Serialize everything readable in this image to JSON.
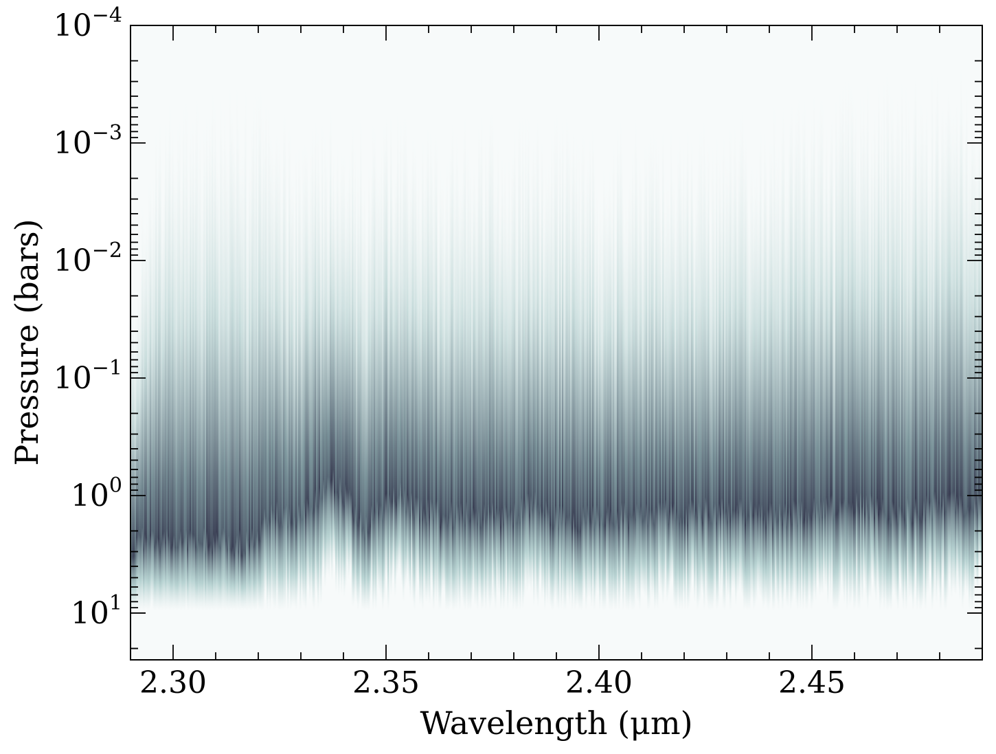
{
  "chart_data": {
    "type": "heatmap",
    "title": "",
    "xlabel": "Wavelength (μm)",
    "ylabel": "Pressure (bars)",
    "xlim": [
      2.29,
      2.49
    ],
    "ylim": [
      25,
      0.0001
    ],
    "yscale": "log",
    "y_inverted": true,
    "grid": false,
    "legend": "none",
    "x_ticks": [
      {
        "value": 2.3,
        "label": "2.30"
      },
      {
        "value": 2.35,
        "label": "2.35"
      },
      {
        "value": 2.4,
        "label": "2.40"
      },
      {
        "value": 2.45,
        "label": "2.45"
      }
    ],
    "y_ticks": [
      {
        "value": 0.0001,
        "base": "10",
        "exp": "−4"
      },
      {
        "value": 0.001,
        "base": "10",
        "exp": "−3"
      },
      {
        "value": 0.01,
        "base": "10",
        "exp": "−2"
      },
      {
        "value": 0.1,
        "base": "10",
        "exp": "−1"
      },
      {
        "value": 1,
        "base": "10",
        "exp": "0"
      },
      {
        "value": 10,
        "base": "10",
        "exp": "1"
      }
    ],
    "colormap": {
      "low": "#f7fafa",
      "mid": "#8fb9b8",
      "high": "#1e1a35"
    },
    "contribution_profile": [
      {
        "x": 2.2905,
        "peak_pressure": 3.0,
        "top_pressure": 0.02
      },
      {
        "x": 2.293,
        "peak_pressure": 2.2,
        "top_pressure": 0.002
      },
      {
        "x": 2.3,
        "peak_pressure": 2.5,
        "top_pressure": 0.0006
      },
      {
        "x": 2.31,
        "peak_pressure": 2.4,
        "top_pressure": 0.0005
      },
      {
        "x": 2.32,
        "peak_pressure": 2.5,
        "top_pressure": 0.0005
      },
      {
        "x": 2.3225,
        "peak_pressure": 1.3,
        "top_pressure": 0.0007
      },
      {
        "x": 2.33,
        "peak_pressure": 1.6,
        "top_pressure": 0.0008
      },
      {
        "x": 2.336,
        "peak_pressure": 0.8,
        "top_pressure": 0.0008
      },
      {
        "x": 2.338,
        "peak_pressure": 0.7,
        "top_pressure": 0.0008
      },
      {
        "x": 2.345,
        "peak_pressure": 1.8,
        "top_pressure": 0.0009
      },
      {
        "x": 2.353,
        "peak_pressure": 1.0,
        "top_pressure": 0.0009
      },
      {
        "x": 2.36,
        "peak_pressure": 1.4,
        "top_pressure": 0.0009
      },
      {
        "x": 2.37,
        "peak_pressure": 1.5,
        "top_pressure": 0.0009
      },
      {
        "x": 2.38,
        "peak_pressure": 1.4,
        "top_pressure": 0.0009
      },
      {
        "x": 2.385,
        "peak_pressure": 1.1,
        "top_pressure": 0.0009
      },
      {
        "x": 2.39,
        "peak_pressure": 1.6,
        "top_pressure": 0.0009
      },
      {
        "x": 2.4,
        "peak_pressure": 1.5,
        "top_pressure": 0.001
      },
      {
        "x": 2.41,
        "peak_pressure": 1.4,
        "top_pressure": 0.001
      },
      {
        "x": 2.42,
        "peak_pressure": 1.4,
        "top_pressure": 0.001
      },
      {
        "x": 2.43,
        "peak_pressure": 1.3,
        "top_pressure": 0.001
      },
      {
        "x": 2.44,
        "peak_pressure": 1.5,
        "top_pressure": 0.0008
      },
      {
        "x": 2.45,
        "peak_pressure": 1.3,
        "top_pressure": 0.0006
      },
      {
        "x": 2.46,
        "peak_pressure": 1.2,
        "top_pressure": 0.0004
      },
      {
        "x": 2.47,
        "peak_pressure": 1.4,
        "top_pressure": 0.0004
      },
      {
        "x": 2.48,
        "peak_pressure": 1.2,
        "top_pressure": 0.0003
      },
      {
        "x": 2.49,
        "peak_pressure": 1.1,
        "top_pressure": 0.0003
      }
    ]
  }
}
